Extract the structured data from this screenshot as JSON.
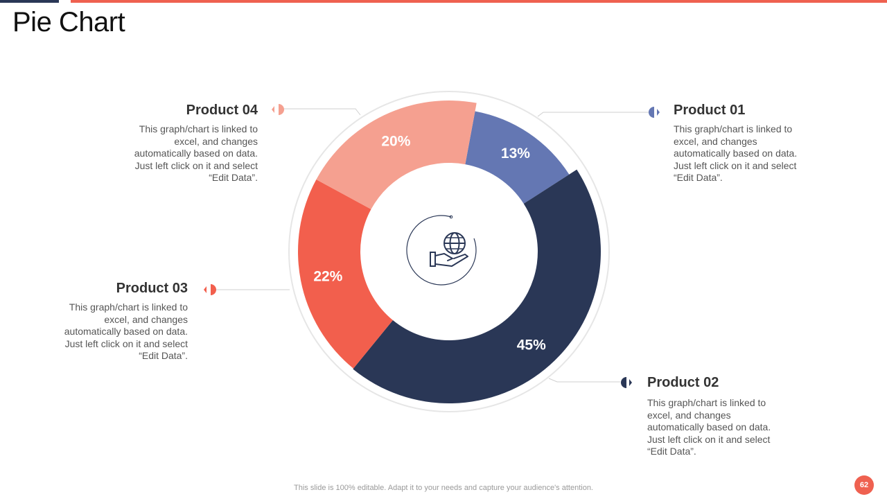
{
  "slide": {
    "title": "Pie Chart",
    "footer": "This slide is 100% editable. Adapt it to your needs and capture your audience's attention.",
    "page_number": "62"
  },
  "colors": {
    "product_01": "#6477b3",
    "product_02": "#2a3756",
    "product_03": "#f25f4d",
    "product_04": "#f5a090",
    "accent": "#ef6150"
  },
  "products": [
    {
      "id": "product_01",
      "title": "Product 01",
      "desc": "This graph/chart is linked to excel, and changes automatically based on data. Just left click on it and select “Edit Data”."
    },
    {
      "id": "product_02",
      "title": "Product 02",
      "desc": "This graph/chart is linked to excel, and changes automatically based on data. Just left click on it and select “Edit Data”."
    },
    {
      "id": "product_03",
      "title": "Product 03",
      "desc": "This graph/chart is linked to excel, and changes automatically based on data. Just left click on it and select “Edit Data”."
    },
    {
      "id": "product_04",
      "title": "Product 04",
      "desc": "This graph/chart is linked to excel, and changes automatically based on data. Just left click on it and select “Edit Data”."
    }
  ],
  "center_icon": "hand-holding-globe-icon",
  "chart_data": {
    "type": "pie",
    "style": "donut",
    "title": "Pie Chart",
    "categories": [
      "Product 01",
      "Product 02",
      "Product 03",
      "Product 04"
    ],
    "values": [
      13,
      45,
      22,
      20
    ],
    "labels": [
      "13%",
      "45%",
      "22%",
      "20%"
    ],
    "colors": [
      "#6477b3",
      "#2a3756",
      "#f25f4d",
      "#f5a090"
    ]
  }
}
